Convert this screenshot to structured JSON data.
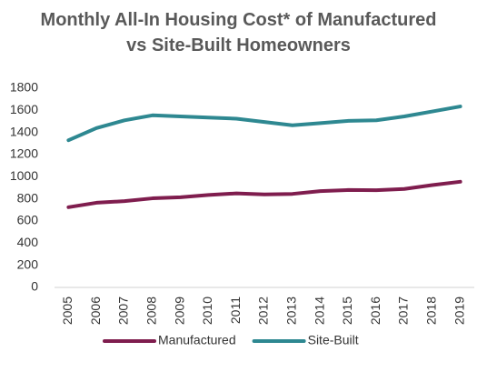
{
  "chart_data": {
    "type": "line",
    "title": "Monthly All-In Housing Cost* of Manufactured vs Site-Built Homeowners",
    "categories": [
      "2005",
      "2006",
      "2007",
      "2008",
      "2009",
      "2010",
      "2011",
      "2012",
      "2013",
      "2014",
      "2015",
      "2016",
      "2017",
      "2018",
      "2019"
    ],
    "series": [
      {
        "name": "Manufactured",
        "color": "#7f1d4e",
        "values": [
          725,
          765,
          780,
          805,
          815,
          835,
          850,
          840,
          845,
          870,
          880,
          878,
          890,
          925,
          955
        ]
      },
      {
        "name": "Site-Built",
        "color": "#2e8891",
        "values": [
          1330,
          1440,
          1510,
          1555,
          1545,
          1535,
          1525,
          1495,
          1465,
          1485,
          1505,
          1510,
          1545,
          1590,
          1635
        ]
      }
    ],
    "ylim": [
      0,
      1800
    ],
    "yticks": [
      0,
      200,
      400,
      600,
      800,
      1000,
      1200,
      1400,
      1600,
      1800
    ],
    "grid": false,
    "legend": "bottom"
  }
}
